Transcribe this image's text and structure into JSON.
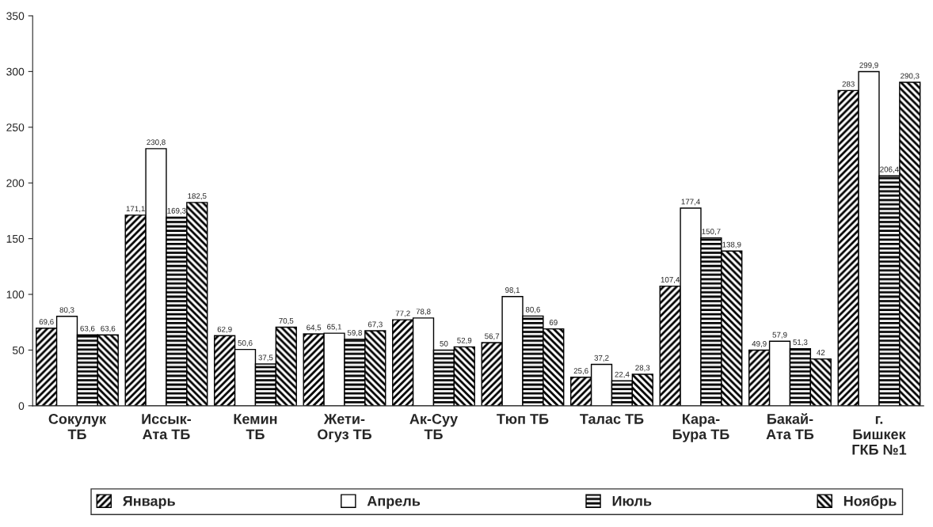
{
  "chart_data": {
    "type": "bar",
    "categories": [
      "Сокулук\nТБ",
      "Иссык-\nАта ТБ",
      "Кемин\nТБ",
      "Жети-\nОгуз ТБ",
      "Ак-Суу\nТБ",
      "Тюп ТБ",
      "Талас ТБ",
      "Кара-\nБура ТБ",
      "Бакай-\nАта ТБ",
      "г.\nБишкек\nГКБ №1"
    ],
    "series": [
      {
        "name": "Январь",
        "color": "#000000",
        "values": [
          69.6,
          171.1,
          62.9,
          64.5,
          77.2,
          56.7,
          25.6,
          107.4,
          49.9,
          283
        ],
        "value_labels": [
          "69,6",
          "171,1",
          "62,9",
          "64,5",
          "77,2",
          "56,7",
          "25,6",
          "107,4",
          "49,9",
          "283"
        ]
      },
      {
        "name": "Апрель",
        "color": "#ffffff",
        "values": [
          80.3,
          230.8,
          50.6,
          65.1,
          78.8,
          98.1,
          37.2,
          177.4,
          57.9,
          299.9
        ],
        "value_labels": [
          "80,3",
          "230,8",
          "50,6",
          "65,1",
          "78,8",
          "98,1",
          "37,2",
          "177,4",
          "57,9",
          "299,9"
        ]
      },
      {
        "name": "Июль",
        "color": "#000000",
        "values": [
          63.6,
          169.3,
          37.5,
          59.8,
          50,
          80.6,
          22.4,
          150.7,
          51.3,
          206.4
        ],
        "value_labels": [
          "63,6",
          "169,3",
          "37,5",
          "59,8",
          "50",
          "80,6",
          "22,4",
          "150,7",
          "51,3",
          "206,4"
        ]
      },
      {
        "name": "Ноябрь",
        "color": "#000000",
        "values": [
          63.6,
          182.5,
          70.5,
          67.3,
          52.9,
          69,
          28.3,
          138.9,
          42,
          290.3
        ],
        "value_labels": [
          "63,6",
          "182,5",
          "70,5",
          "67,3",
          "52,9",
          "69",
          "28,3",
          "138,9",
          "42",
          "290,3"
        ]
      }
    ],
    "ylim": [
      0,
      350
    ],
    "yticks": [
      0,
      50,
      100,
      150,
      200,
      250,
      300,
      350
    ],
    "grid": false,
    "legend": "bottom"
  }
}
